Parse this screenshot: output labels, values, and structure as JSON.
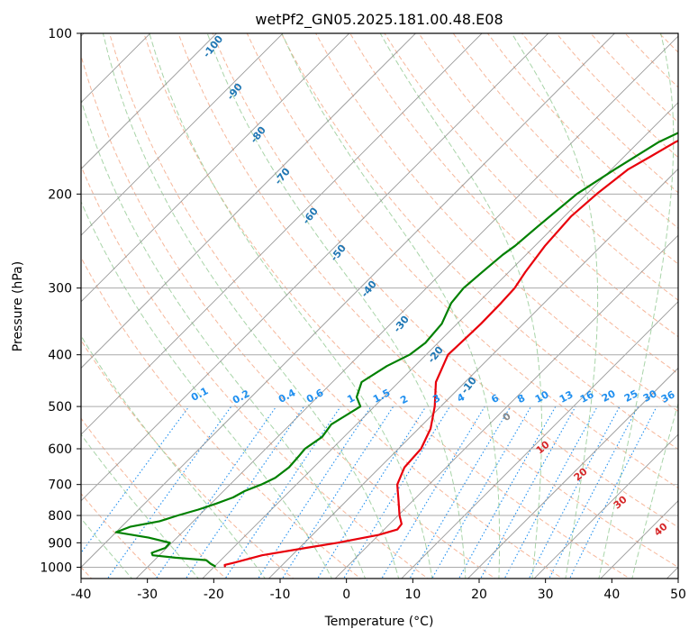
{
  "chart_data": {
    "type": "line",
    "title": "wetPf2_GN05.2025.181.00.48.E08",
    "xlabel": "Temperature (°C)",
    "ylabel": "Pressure (hPa)",
    "xlim": [
      -40,
      50
    ],
    "ylim": [
      1050,
      100
    ],
    "y_scale": "log",
    "grid": true,
    "x_ticks": [
      "-40",
      "-30",
      "-20",
      "-10",
      "0",
      "10",
      "20",
      "30",
      "40",
      "50"
    ],
    "y_ticks": [
      "100",
      "200",
      "300",
      "400",
      "500",
      "600",
      "700",
      "800",
      "900",
      "1000"
    ],
    "colors": {
      "temperature": "#e8000b",
      "dewpoint": "#008000",
      "isotherm": "#888888",
      "dry_adiabat": "#f4a582",
      "moist_adiabat": "#99cc99",
      "mixing_ratio": "#1f8fef",
      "isotherm_label": "#1f77b4",
      "moist_label": "#d62728"
    },
    "series": [
      {
        "pressure": [
          1000,
          990,
          980,
          950,
          920,
          900,
          870,
          850,
          830,
          800,
          750,
          700,
          650,
          600,
          550,
          500,
          450,
          400,
          370,
          350,
          320,
          300,
          280,
          250,
          220,
          200,
          180,
          170,
          160,
          150,
          140,
          130,
          120,
          110,
          100
        ],
        "values": [
          -18.3,
          -18.7,
          -17.5,
          -14.5,
          -9.0,
          -5.0,
          0.0,
          2.0,
          1.8,
          0.2,
          -2.2,
          -4.8,
          -6.3,
          -6.6,
          -8.2,
          -10.9,
          -14.4,
          -16.7,
          -16.5,
          -16.4,
          -16.5,
          -16.7,
          -17.5,
          -18.5,
          -19.0,
          -18.5,
          -17.5,
          -16.0,
          -14.5,
          -12.0,
          -9.0,
          -6.0,
          -3.0,
          0.0,
          2.0
        ]
      },
      {
        "pressure": [
          1000,
          995,
          985,
          970,
          960,
          950,
          940,
          920,
          900,
          880,
          860,
          840,
          820,
          800,
          780,
          760,
          740,
          720,
          700,
          680,
          650,
          620,
          600,
          570,
          540,
          500,
          480,
          450,
          420,
          400,
          380,
          350,
          320,
          300,
          280,
          260,
          250,
          230,
          200,
          180,
          160,
          150,
          140,
          130,
          120,
          110,
          100
        ],
        "values": [
          -19.9,
          -20.0,
          -21.0,
          -22.2,
          -27.2,
          -31.0,
          -31.5,
          -30.2,
          -30.3,
          -34.3,
          -40.0,
          -38.7,
          -35.1,
          -33.2,
          -31.0,
          -29.2,
          -27.6,
          -26.8,
          -25.3,
          -24.2,
          -23.7,
          -23.9,
          -24.1,
          -23.3,
          -23.8,
          -22.1,
          -24.1,
          -25.6,
          -24.2,
          -22.5,
          -21.9,
          -22.3,
          -24.0,
          -24.4,
          -24.0,
          -23.5,
          -23.0,
          -22.5,
          -21.5,
          -19.5,
          -17.0,
          -14.5,
          -12.5,
          -11.0,
          -9.5,
          -8.0,
          -5.5
        ]
      }
    ],
    "isotherm_labels": [
      "-100",
      "-90",
      "-80",
      "-70",
      "-60",
      "-50",
      "-40",
      "-30",
      "-20",
      "-10"
    ],
    "mixing_ratio_labels": [
      "0.1",
      "0.2",
      "0.4",
      "0.6",
      "1",
      "1.5",
      "2",
      "3",
      "4",
      "6",
      "8",
      "10",
      "13",
      "16",
      "20",
      "25",
      "30",
      "36"
    ],
    "moist_adiabat_labels": [
      "0",
      "10",
      "20",
      "30",
      "40"
    ]
  }
}
